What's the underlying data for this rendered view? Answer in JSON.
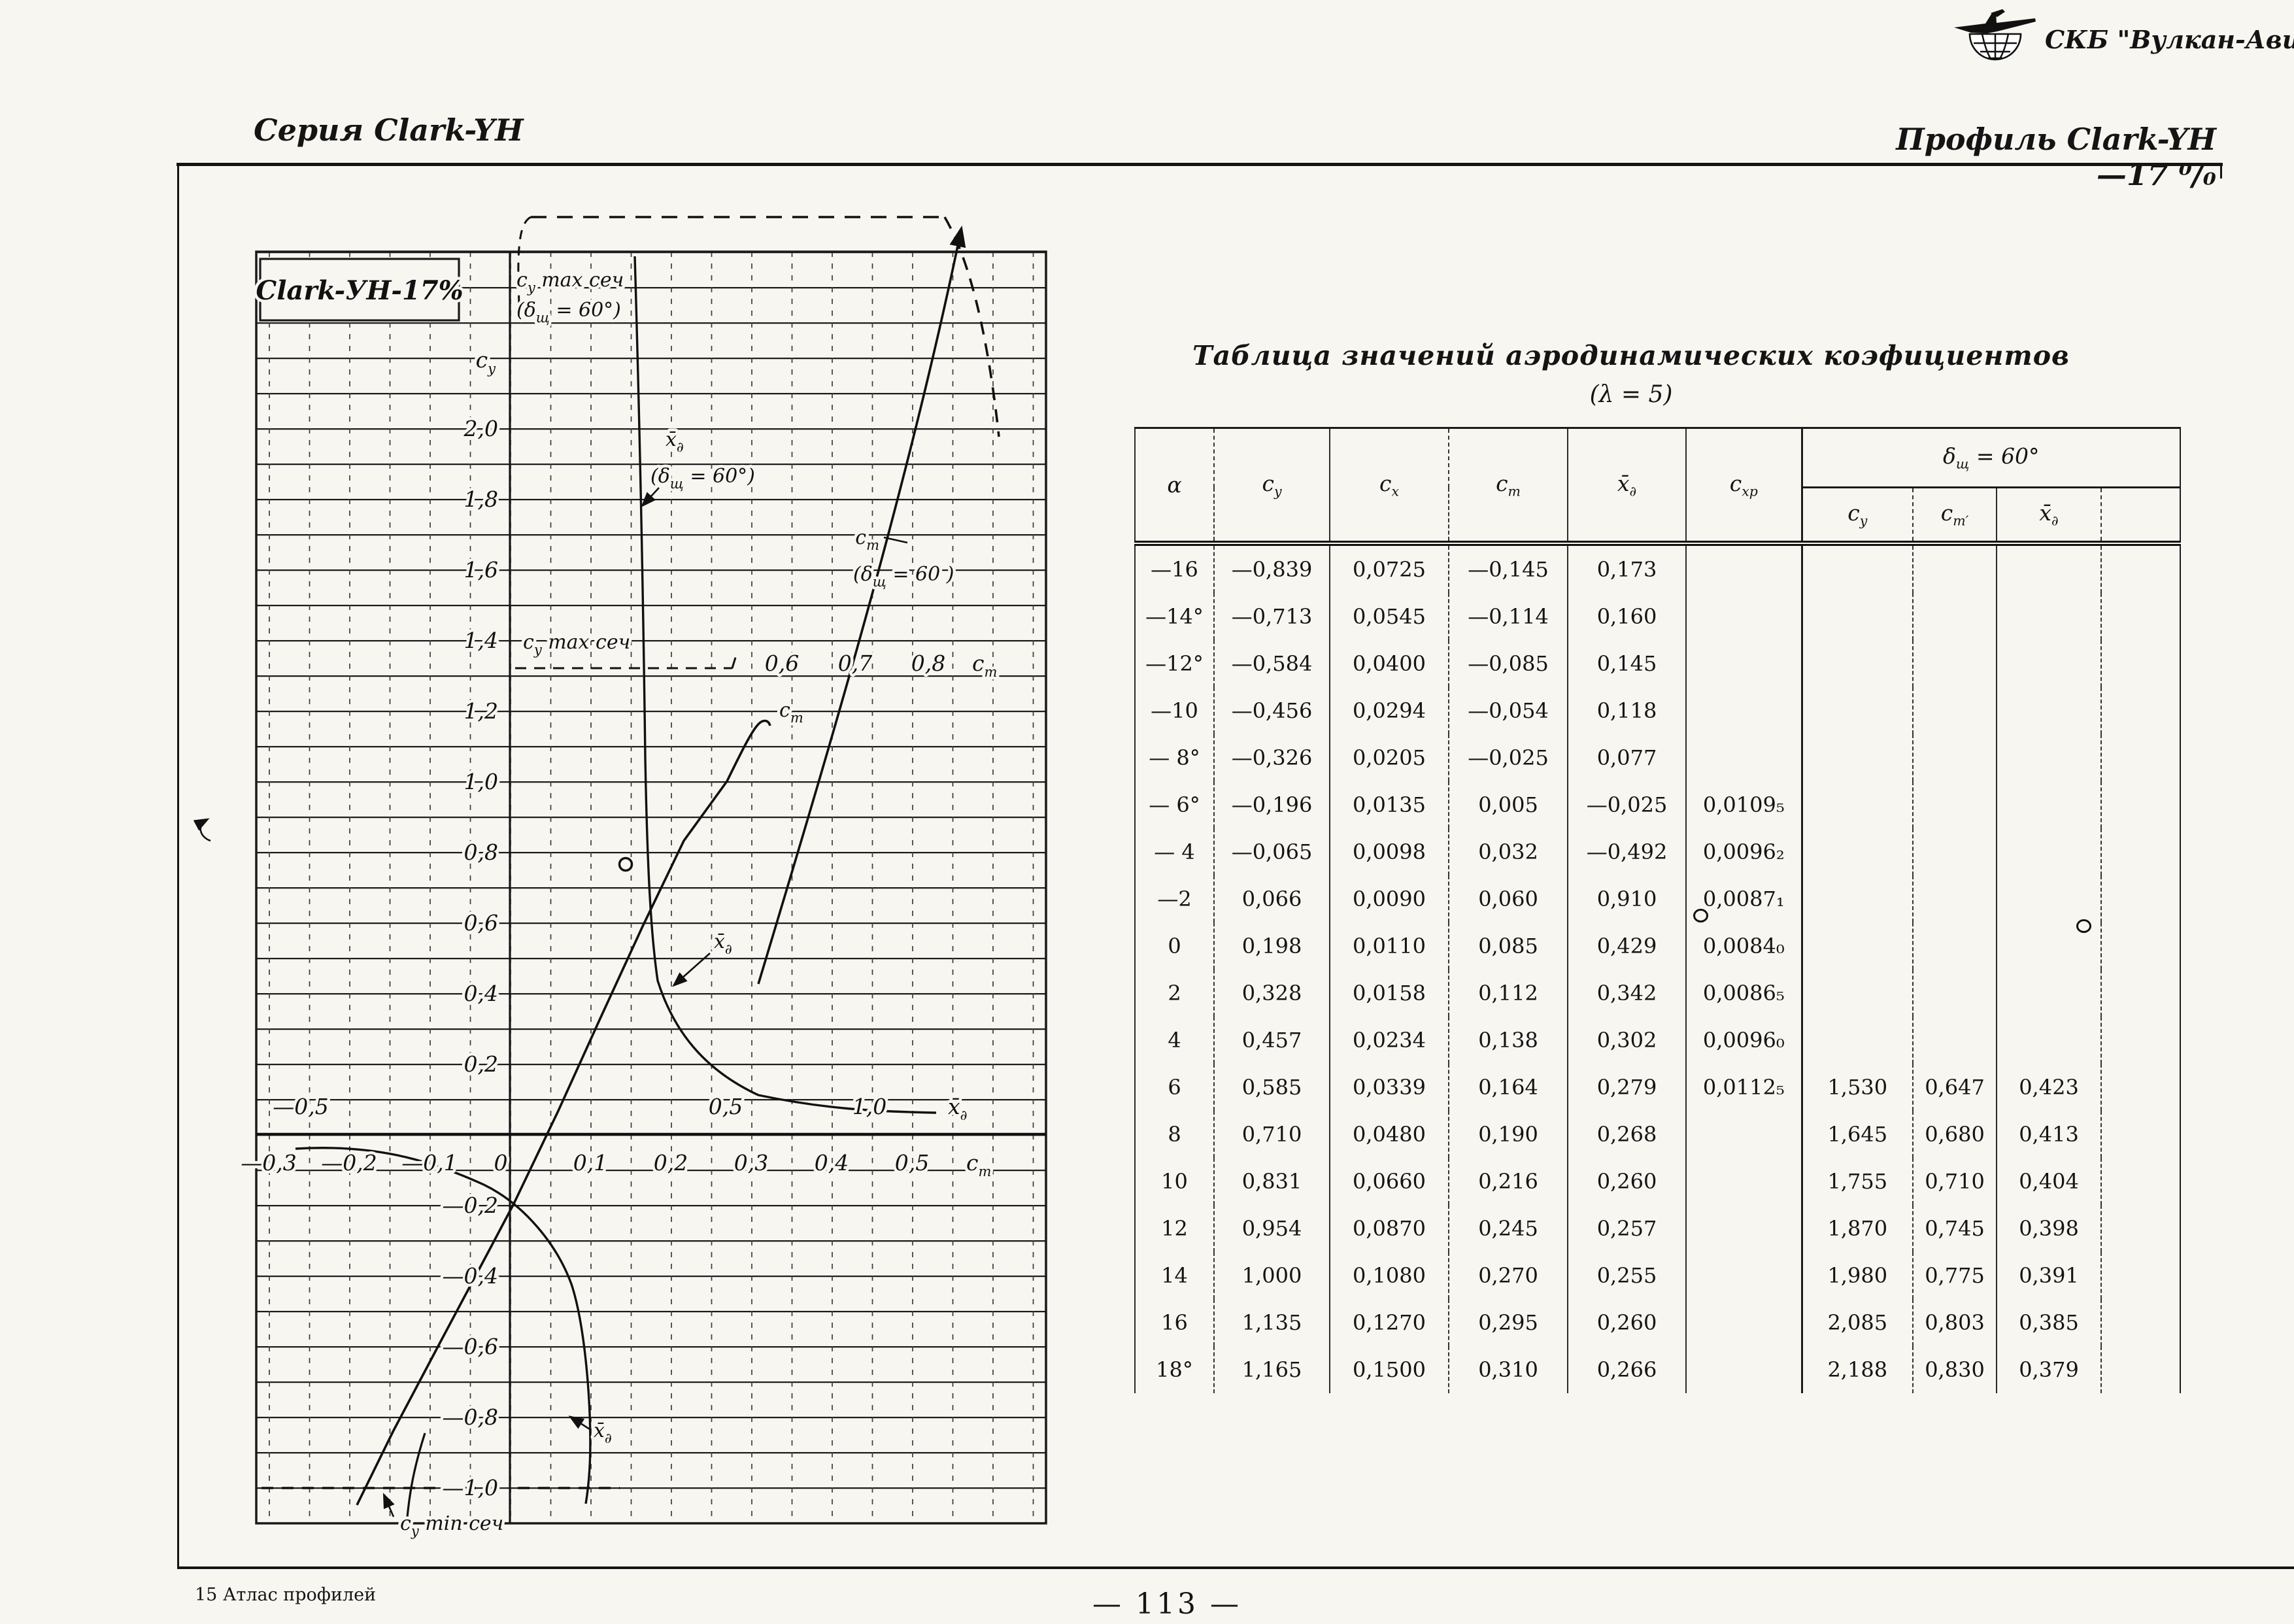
{
  "logo": {
    "org": "СКБ \"Вулкан-Авиа\"",
    "icon": "airplane-over-globe"
  },
  "header": {
    "left": "Серия Clark-YH",
    "right": "Профиль Clark-YH—17 ⁰/₀"
  },
  "chart": {
    "box_title": "Clark-УН-17%",
    "sym": {
      "c": "c",
      "y": "y",
      "m": "m",
      "x": "x̄",
      "d": "∂",
      "delta_open": "(δ",
      "shch": "щ",
      "eq60": " = 60°)",
      "eq60_flat": " = 60 )",
      "max_sech": " max сеч",
      "min_sech": " min сеч"
    },
    "cy_ticks": [
      "2,0",
      "1,8",
      "1,6",
      "1,4",
      "1,2",
      "1,0",
      "0,8",
      "0,6",
      "0,4",
      "0,2",
      "—0,2",
      "—0,4",
      "—0,6",
      "—0,8",
      "—1,0"
    ],
    "cm_ticks": [
      "—0,3",
      "—0,2",
      "—0,1",
      "0",
      "0,1",
      "0,2",
      "0,3",
      "0,4",
      "0,5"
    ],
    "xd_ticks": [
      "—0,5",
      "0,5",
      "1,0"
    ],
    "cm_top_ticks": [
      "0,6",
      "0,7",
      "0,8"
    ]
  },
  "table": {
    "title": "Таблица значений аэродинамических коэфициентов",
    "subtitle": "(λ = 5)",
    "columns": [
      {
        "b": "α",
        "s": ""
      },
      {
        "b": "c",
        "s": "y"
      },
      {
        "b": "c",
        "s": "x"
      },
      {
        "b": "c",
        "s": "m"
      },
      {
        "b": "x̄",
        "s": "∂"
      },
      {
        "b": "c",
        "s": "xp"
      }
    ],
    "group": {
      "b": "δ",
      "s": "щ",
      "r": " = 60°"
    },
    "flap_columns": [
      {
        "b": "c",
        "s": "y"
      },
      {
        "b": "c",
        "s": "m′"
      },
      {
        "b": "x̄",
        "s": "∂"
      },
      {
        "b": "",
        "s": ""
      }
    ],
    "rows": [
      [
        "—16",
        "—0,839",
        "0,0725",
        "—0,145",
        "0,173",
        "",
        "",
        "",
        "",
        ""
      ],
      [
        "—14°",
        "—0,713",
        "0,0545",
        "—0,114",
        "0,160",
        "",
        "",
        "",
        "",
        ""
      ],
      [
        "—12°",
        "—0,584",
        "0,0400",
        "—0,085",
        "0,145",
        "",
        "",
        "",
        "",
        ""
      ],
      [
        "—10",
        "—0,456",
        "0,0294",
        "—0,054",
        "0,118",
        "",
        "",
        "",
        "",
        ""
      ],
      [
        "— 8°",
        "—0,326",
        "0,0205",
        "—0,025",
        "0,077",
        "",
        "",
        "",
        "",
        ""
      ],
      [
        "— 6°",
        "—0,196",
        "0,0135",
        "0,005",
        "—0,025",
        "0,0109₅",
        "",
        "",
        "",
        ""
      ],
      [
        "— 4",
        "—0,065",
        "0,0098",
        "0,032",
        "—0,492",
        "0,0096₂",
        "",
        "",
        "",
        ""
      ],
      [
        "—2",
        "0,066",
        "0,0090",
        "0,060",
        "0,910",
        "0,0087₁",
        "",
        "",
        "",
        ""
      ],
      [
        "0",
        "0,198",
        "0,0110",
        "0,085",
        "0,429",
        "0,0084₀",
        "",
        "",
        "",
        ""
      ],
      [
        "2",
        "0,328",
        "0,0158",
        "0,112",
        "0,342",
        "0,0086₅",
        "",
        "",
        "",
        ""
      ],
      [
        "4",
        "0,457",
        "0,0234",
        "0,138",
        "0,302",
        "0,0096₀",
        "",
        "",
        "",
        ""
      ],
      [
        "6",
        "0,585",
        "0,0339",
        "0,164",
        "0,279",
        "0,0112₅",
        "1,530",
        "0,647",
        "0,423",
        ""
      ],
      [
        "8",
        "0,710",
        "0,0480",
        "0,190",
        "0,268",
        "",
        "1,645",
        "0,680",
        "0,413",
        ""
      ],
      [
        "10",
        "0,831",
        "0,0660",
        "0,216",
        "0,260",
        "",
        "1,755",
        "0,710",
        "0,404",
        ""
      ],
      [
        "12",
        "0,954",
        "0,0870",
        "0,245",
        "0,257",
        "",
        "1,870",
        "0,745",
        "0,398",
        ""
      ],
      [
        "14",
        "1,000",
        "0,1080",
        "0,270",
        "0,255",
        "",
        "1,980",
        "0,775",
        "0,391",
        ""
      ],
      [
        "16",
        "1,135",
        "0,1270",
        "0,295",
        "0,260",
        "",
        "2,085",
        "0,803",
        "0,385",
        ""
      ],
      [
        "18°",
        "1,165",
        "0,1500",
        "0,310",
        "0,266",
        "",
        "2,188",
        "0,830",
        "0,379",
        ""
      ]
    ]
  },
  "footer": {
    "left": "15  Атлас профилей",
    "page": "— 113 —"
  },
  "chart_data": {
    "type": "line",
    "title": "Clark-УН-17% — polar c_y(c_m) and centre-of-pressure x̄_д curves, λ = 5",
    "y_axis": {
      "label": "c_y",
      "range": [
        -1.0,
        2.0
      ],
      "tick_step": 0.2
    },
    "x_axes": [
      {
        "label": "c_m",
        "range": [
          -0.3,
          0.5
        ]
      },
      {
        "label": "x̄_д",
        "range": [
          -0.5,
          1.0
        ]
      },
      {
        "label": "c_m (top scale, δ_щ = 60°)",
        "range": [
          0.6,
          0.8
        ]
      }
    ],
    "grid": true,
    "series": [
      {
        "name": "c_y vs c_m",
        "x": [
          -0.145,
          -0.114,
          -0.085,
          -0.054,
          -0.025,
          0.005,
          0.032,
          0.06,
          0.085,
          0.112,
          0.138,
          0.164,
          0.19,
          0.216,
          0.245,
          0.27,
          0.295,
          0.31
        ],
        "y": [
          -0.839,
          -0.713,
          -0.584,
          -0.456,
          -0.326,
          -0.196,
          -0.065,
          0.066,
          0.198,
          0.328,
          0.457,
          0.585,
          0.71,
          0.831,
          0.954,
          1.0,
          1.135,
          1.165
        ]
      },
      {
        "name": "x̄_д vs c_y (upper branch)",
        "x": [
          0.91,
          0.429,
          0.342,
          0.302,
          0.279,
          0.268,
          0.26,
          0.257,
          0.255
        ],
        "y": [
          0.066,
          0.198,
          0.328,
          0.457,
          0.585,
          0.71,
          0.831,
          0.954,
          1.0
        ]
      },
      {
        "name": "x̄_д vs c_y (lower branch)",
        "x": [
          -0.492,
          -0.025,
          0.077,
          0.118,
          0.145,
          0.16,
          0.173
        ],
        "y": [
          -0.065,
          -0.196,
          -0.326,
          -0.456,
          -0.584,
          -0.713,
          -0.839
        ]
      },
      {
        "name": "c_m vs c_y (δ_щ = 60°)",
        "x": [
          0.647,
          0.68,
          0.71,
          0.745,
          0.775,
          0.803,
          0.83
        ],
        "y": [
          1.53,
          1.645,
          1.755,
          1.87,
          1.98,
          2.085,
          2.188
        ]
      },
      {
        "name": "x̄_д vs c_y (δ_щ = 60°)",
        "x": [
          0.423,
          0.413,
          0.404,
          0.398,
          0.391,
          0.385,
          0.379
        ],
        "y": [
          1.53,
          1.645,
          1.755,
          1.87,
          1.98,
          2.085,
          2.188
        ]
      }
    ],
    "reference_lines": [
      {
        "label": "c_y max сеч",
        "y": 1.33,
        "style": "dashed"
      },
      {
        "label": "c_y max сеч (δ_щ = 60°)",
        "y": 2.35,
        "style": "dashed"
      },
      {
        "label": "c_y min сеч",
        "y": -1.0,
        "style": "dashed"
      }
    ]
  }
}
